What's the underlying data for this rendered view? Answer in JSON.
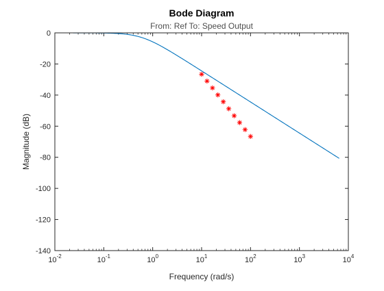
{
  "chart_data": {
    "type": "line",
    "title": "Bode Diagram",
    "subtitle": "From: Ref  To: Speed Output",
    "xlabel": "Frequency (rad/s)",
    "ylabel": "Magnitude (dB)",
    "xscale": "log",
    "xlim": [
      0.01,
      10000
    ],
    "ylim": [
      -140,
      0
    ],
    "x_ticks": [
      {
        "value": 0.01,
        "base": "10",
        "exp": "-2"
      },
      {
        "value": 0.1,
        "base": "10",
        "exp": "-1"
      },
      {
        "value": 1,
        "base": "10",
        "exp": "0"
      },
      {
        "value": 10,
        "base": "10",
        "exp": "1"
      },
      {
        "value": 100,
        "base": "10",
        "exp": "2"
      },
      {
        "value": 1000,
        "base": "10",
        "exp": "3"
      },
      {
        "value": 10000,
        "base": "10",
        "exp": "4"
      }
    ],
    "y_ticks": [
      0,
      -20,
      -40,
      -60,
      -80,
      -100,
      -120,
      -140
    ],
    "grid": false,
    "series": [
      {
        "type": "line",
        "color": "#0072BD",
        "corner_frequency": 0.6,
        "order": 2,
        "x_range": [
          0.01,
          6500
        ]
      },
      {
        "type": "scatter",
        "marker": "asterisk",
        "color": "#FF0000",
        "x": [
          10,
          12.9,
          16.7,
          21.5,
          27.8,
          35.9,
          46.4,
          59.9,
          77.4,
          100
        ],
        "y": [
          -26.6,
          -31.0,
          -35.4,
          -39.9,
          -44.3,
          -48.8,
          -53.3,
          -57.7,
          -62.2,
          -66.6
        ]
      }
    ]
  }
}
